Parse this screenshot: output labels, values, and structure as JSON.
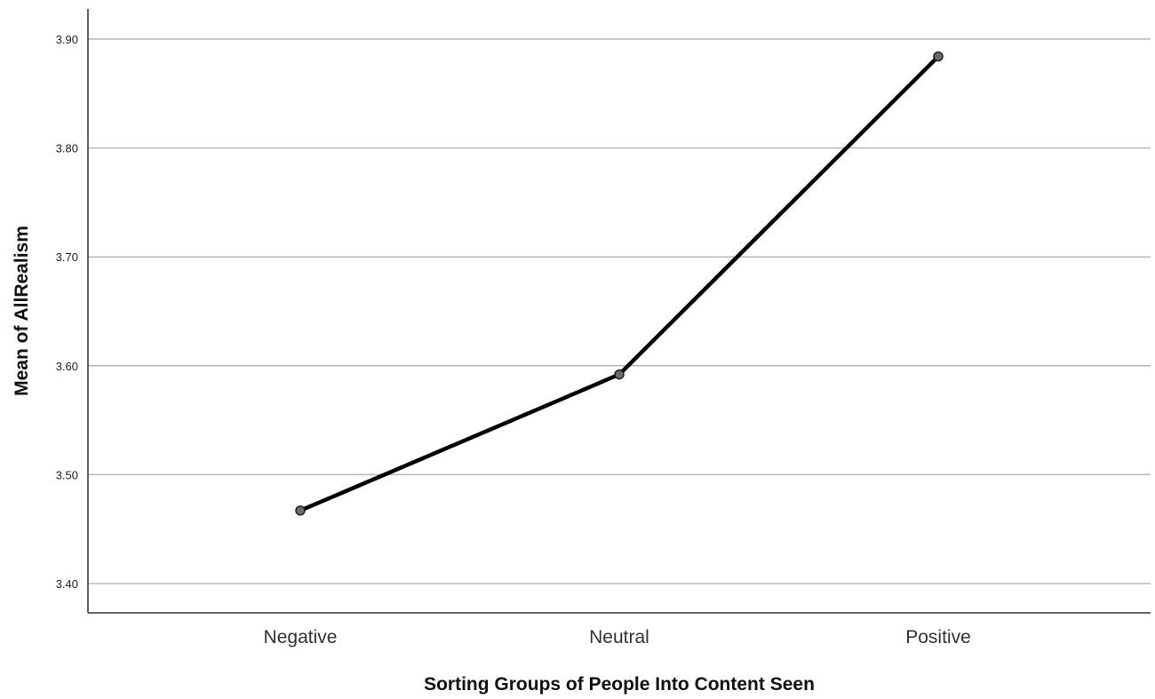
{
  "chart_data": {
    "type": "line",
    "categories": [
      "Negative",
      "Neutral",
      "Positive"
    ],
    "series": [
      {
        "values": [
          3.467,
          3.592,
          3.884
        ]
      }
    ],
    "xlabel": "Sorting Groups of People Into Content Seen",
    "ylabel": "Mean of AllRealism",
    "ylim": [
      3.4,
      3.9
    ],
    "yticks": [
      "3.40",
      "3.50",
      "3.60",
      "3.70",
      "3.80",
      "3.90"
    ],
    "grid": true,
    "colors": {
      "line": "#000000",
      "marker": "#6b6b6b",
      "grid": "#b8b8b8"
    }
  }
}
